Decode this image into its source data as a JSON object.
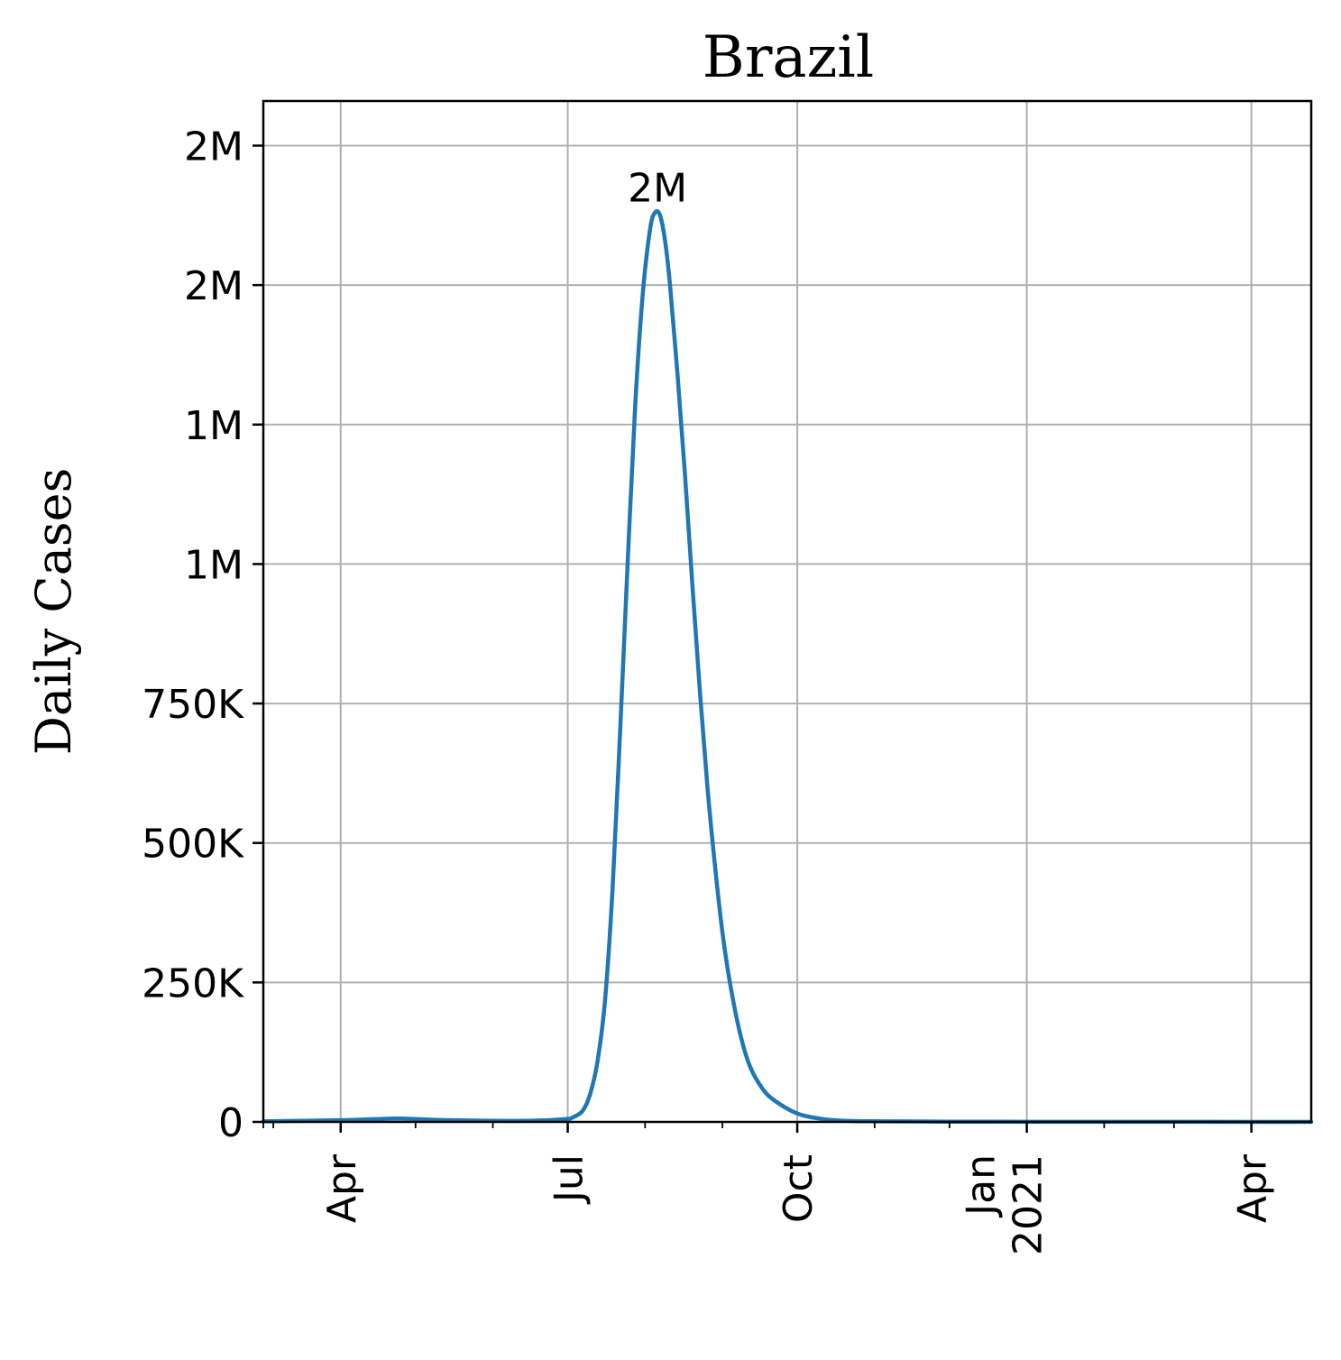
{
  "chart_data": {
    "type": "line",
    "title": "Brazil",
    "ylabel": "Daily Cases",
    "xlabel": "",
    "grid": true,
    "line_color": "#1f77b4",
    "xlim": [
      "2020-03-01",
      "2021-04-25"
    ],
    "ylim": [
      0,
      1830000
    ],
    "y_ticks": [
      {
        "value": 0,
        "label": "0"
      },
      {
        "value": 250000,
        "label": "250K"
      },
      {
        "value": 500000,
        "label": "500K"
      },
      {
        "value": 750000,
        "label": "750K"
      },
      {
        "value": 1000000,
        "label": "1M"
      },
      {
        "value": 1250000,
        "label": "1M"
      },
      {
        "value": 1500000,
        "label": "2M"
      },
      {
        "value": 1750000,
        "label": "2M"
      }
    ],
    "x_ticks": [
      {
        "date": "2020-04-01",
        "lines": [
          "Apr"
        ]
      },
      {
        "date": "2020-07-01",
        "lines": [
          "Jul"
        ]
      },
      {
        "date": "2020-10-01",
        "lines": [
          "Oct"
        ]
      },
      {
        "date": "2021-01-01",
        "lines": [
          "Jan",
          "2021"
        ]
      },
      {
        "date": "2021-04-01",
        "lines": [
          "Apr"
        ]
      }
    ],
    "x_minor_ticks": [
      "2020-03-01",
      "2020-03-05",
      "2020-05-01",
      "2020-06-01",
      "2020-08-01",
      "2020-09-01",
      "2020-11-01",
      "2020-12-01",
      "2021-02-01",
      "2021-03-01"
    ],
    "series": [
      {
        "x": [
          "2020-03-01",
          "2020-04-01",
          "2020-04-15",
          "2020-04-25",
          "2020-05-15",
          "2020-06-15",
          "2020-06-30",
          "2020-07-03",
          "2020-07-07",
          "2020-07-10",
          "2020-07-13",
          "2020-07-16",
          "2020-07-19",
          "2020-07-22",
          "2020-07-25",
          "2020-07-28",
          "2020-07-31",
          "2020-08-03",
          "2020-08-05",
          "2020-08-07",
          "2020-08-09",
          "2020-08-11",
          "2020-08-14",
          "2020-08-17",
          "2020-08-20",
          "2020-08-23",
          "2020-08-26",
          "2020-08-29",
          "2020-09-01",
          "2020-09-04",
          "2020-09-08",
          "2020-09-12",
          "2020-09-17",
          "2020-09-22",
          "2020-10-01",
          "2020-10-10",
          "2020-10-20",
          "2020-11-05",
          "2020-12-01",
          "2021-01-01",
          "2021-02-01",
          "2021-03-01",
          "2021-04-01",
          "2021-04-25"
        ],
        "y": [
          1000,
          3000,
          5000,
          6000,
          3000,
          2000,
          5000,
          8000,
          20000,
          50000,
          110000,
          220000,
          420000,
          700000,
          1000000,
          1280000,
          1480000,
          1600000,
          1630000,
          1625000,
          1580000,
          1500000,
          1340000,
          1160000,
          960000,
          770000,
          600000,
          460000,
          340000,
          250000,
          160000,
          100000,
          60000,
          38000,
          15000,
          6000,
          2000,
          1000,
          500,
          300,
          200,
          150,
          100,
          100
        ]
      }
    ],
    "annotations": [
      {
        "text": "2M",
        "x": "2020-08-06",
        "y": 1630000
      }
    ]
  }
}
